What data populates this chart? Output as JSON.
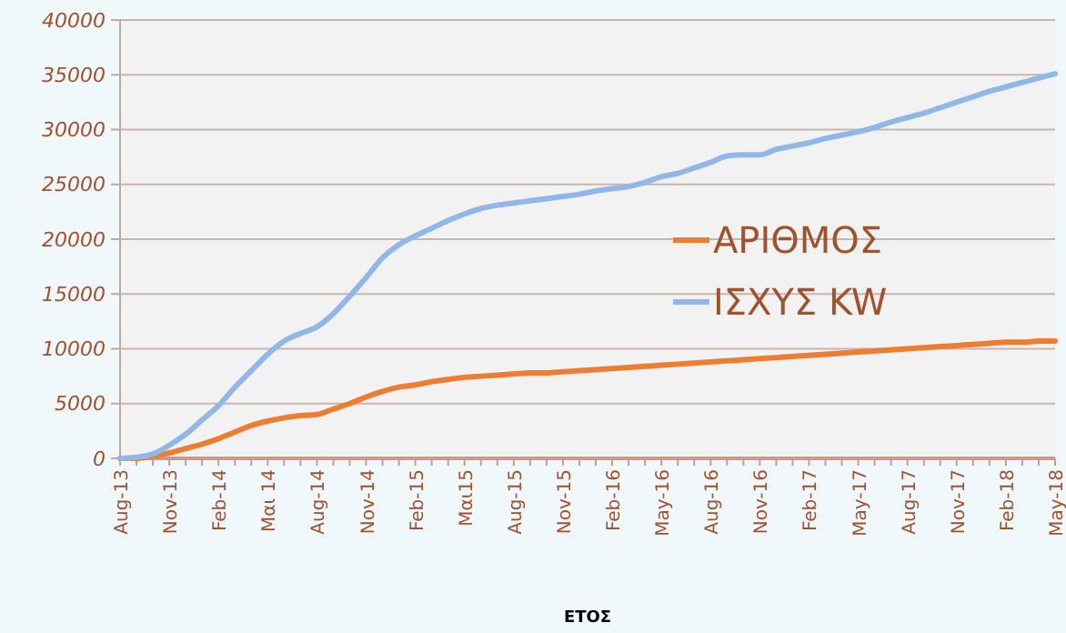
{
  "chart_data": {
    "type": "line",
    "xlabel": "ΕΤΟΣ",
    "categories": [
      "Aug-13",
      null,
      null,
      "Nov-13",
      null,
      null,
      "Feb-14",
      null,
      null,
      "Μαι 14",
      null,
      null,
      "Aug-14",
      null,
      null,
      "Nov-14",
      null,
      null,
      "Feb-15",
      null,
      null,
      "Μαι15",
      null,
      null,
      "Aug-15",
      null,
      null,
      "Nov-15",
      null,
      null,
      "Feb-16",
      null,
      null,
      "May-16",
      null,
      null,
      "Aug-16",
      null,
      null,
      "Nov-16",
      null,
      null,
      "Feb-17",
      null,
      null,
      "May-17",
      null,
      null,
      "Aug-17",
      null,
      null,
      "Nov-17",
      null,
      null,
      "Feb-18",
      null,
      null,
      "May-18"
    ],
    "series": [
      {
        "name": "ΑΡΙΘΜΟΣ",
        "color": "#ed7d31",
        "values": [
          0,
          0,
          200,
          500,
          900,
          1300,
          1800,
          2400,
          3000,
          3400,
          3700,
          3900,
          4000,
          4500,
          5000,
          5600,
          6100,
          6500,
          6700,
          7000,
          7200,
          7400,
          7500,
          7600,
          7700,
          7800,
          7800,
          7900,
          8000,
          8100,
          8200,
          8300,
          8400,
          8500,
          8600,
          8700,
          8800,
          8900,
          9000,
          9100,
          9200,
          9300,
          9400,
          9500,
          9600,
          9700,
          9800,
          9900,
          10000,
          10100,
          10200,
          10300,
          10400,
          10500,
          10600,
          10600,
          10700,
          10700
        ]
      },
      {
        "name": "ΙΣΧΥΣ KW",
        "color": "#8fb8e8",
        "values": [
          0,
          100,
          400,
          1200,
          2200,
          3500,
          4800,
          6500,
          8000,
          9500,
          10700,
          11400,
          12000,
          13200,
          14800,
          16500,
          18300,
          19500,
          20300,
          21000,
          21700,
          22300,
          22800,
          23100,
          23300,
          23500,
          23700,
          23900,
          24100,
          24400,
          24600,
          24800,
          25200,
          25700,
          26000,
          26500,
          27000,
          27600,
          27700,
          27700,
          28200,
          28500,
          28800,
          29200,
          29500,
          29800,
          30200,
          30700,
          31100,
          31500,
          32000,
          32500,
          33000,
          33500,
          33900,
          34300,
          34700,
          35100
        ]
      }
    ],
    "ylim": [
      0,
      40000
    ],
    "yticks": [
      0,
      5000,
      10000,
      15000,
      20000,
      25000,
      30000,
      35000,
      40000
    ],
    "grid": "y",
    "legend": "right",
    "marker": "none",
    "line_style": "solid"
  }
}
